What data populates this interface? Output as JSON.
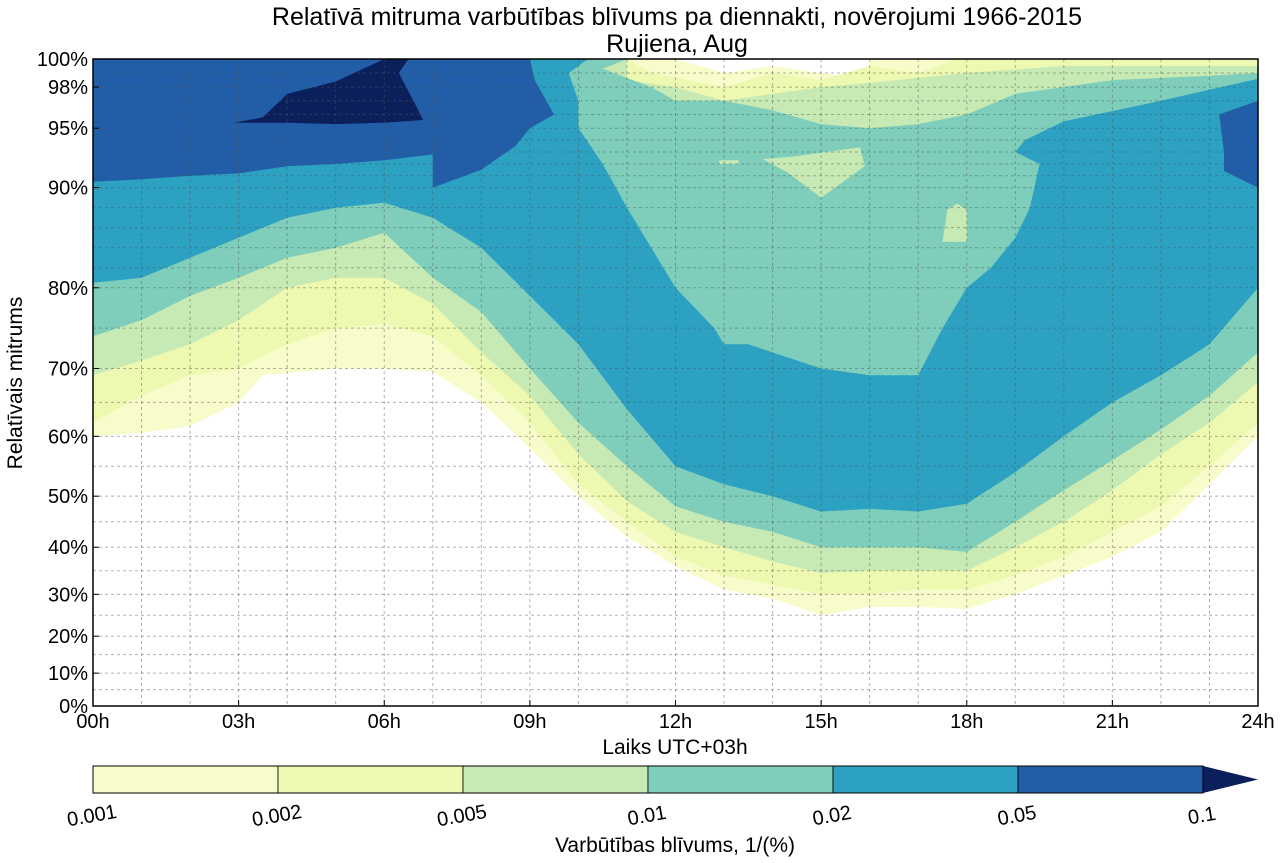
{
  "chart_data": {
    "type": "contourf",
    "title": "Relatīvā mitruma varbūtības blīvums pa diennakti, novērojumi 1966-2015",
    "subtitle": "Rujiena, Aug",
    "xlabel": "Laiks UTC+03h",
    "ylabel": "Relatīvais mitrums",
    "xlim": [
      0,
      24
    ],
    "ylim": [
      0,
      100
    ],
    "x_ticks": [
      {
        "value": 0,
        "label": "00h"
      },
      {
        "value": 3,
        "label": "03h"
      },
      {
        "value": 6,
        "label": "06h"
      },
      {
        "value": 9,
        "label": "09h"
      },
      {
        "value": 12,
        "label": "12h"
      },
      {
        "value": 15,
        "label": "15h"
      },
      {
        "value": 18,
        "label": "18h"
      },
      {
        "value": 21,
        "label": "21h"
      },
      {
        "value": 24,
        "label": "24h"
      }
    ],
    "y_ticks": [
      {
        "value": 0,
        "label": "0%"
      },
      {
        "value": 10,
        "label": "10%"
      },
      {
        "value": 20,
        "label": "20%"
      },
      {
        "value": 30,
        "label": "30%"
      },
      {
        "value": 40,
        "label": "40%"
      },
      {
        "value": 50,
        "label": "50%"
      },
      {
        "value": 60,
        "label": "60%"
      },
      {
        "value": 70,
        "label": "70%"
      },
      {
        "value": 80,
        "label": "80%"
      },
      {
        "value": 90,
        "label": "90%"
      },
      {
        "value": 95,
        "label": "95%"
      },
      {
        "value": 98,
        "label": "98%"
      },
      {
        "value": 100,
        "label": "100%"
      }
    ],
    "y_scale_map": [
      [
        0,
        0
      ],
      [
        10,
        0.0508
      ],
      [
        20,
        0.1079
      ],
      [
        30,
        0.1726
      ],
      [
        40,
        0.2454
      ],
      [
        50,
        0.3243
      ],
      [
        60,
        0.4168
      ],
      [
        70,
        0.5216
      ],
      [
        80,
        0.6464
      ],
      [
        90,
        0.8012
      ],
      [
        95,
        0.893
      ],
      [
        98,
        0.9566
      ],
      [
        100,
        1.0
      ]
    ],
    "grid": true,
    "levels": [
      0.001,
      0.002,
      0.005,
      0.01,
      0.02,
      0.05,
      0.1
    ],
    "level_colors": [
      "#f8fccb",
      "#edf8b1",
      "#c7e9b4",
      "#7fcdbb",
      "#2ca1c1",
      "#225ea8",
      "#0b1f5a"
    ],
    "colorbar": {
      "label": "Varbūtības blīvums, 1/(%)",
      "tick_labels": [
        "0.001",
        "0.002",
        "0.005",
        "0.01",
        "0.02",
        "0.05",
        "0.1"
      ],
      "extend": "max"
    },
    "regions": [
      {
        "level": 0,
        "points": [
          [
            0,
            60
          ],
          [
            1,
            60.5
          ],
          [
            2,
            61.5
          ],
          [
            3,
            65
          ],
          [
            3.5,
            69
          ],
          [
            5,
            70
          ],
          [
            6,
            70
          ],
          [
            7,
            69.5
          ],
          [
            8,
            65
          ],
          [
            9,
            58
          ],
          [
            10,
            50
          ],
          [
            11,
            42
          ],
          [
            12,
            36
          ],
          [
            13,
            31
          ],
          [
            14,
            29
          ],
          [
            15,
            25
          ],
          [
            16,
            27
          ],
          [
            17,
            27
          ],
          [
            18,
            26.5
          ],
          [
            19,
            30
          ],
          [
            20,
            34
          ],
          [
            21,
            38
          ],
          [
            22,
            43
          ],
          [
            23,
            52
          ],
          [
            24,
            60
          ],
          [
            24,
            100
          ],
          [
            16,
            100
          ],
          [
            16,
            98.5
          ],
          [
            15,
            99
          ],
          [
            14,
            99.5
          ],
          [
            13,
            99
          ],
          [
            12,
            100
          ],
          [
            0,
            100
          ]
        ]
      },
      {
        "level": 1,
        "points": [
          [
            0,
            62
          ],
          [
            1,
            66
          ],
          [
            2,
            69
          ],
          [
            3,
            70
          ],
          [
            4,
            73
          ],
          [
            5,
            75
          ],
          [
            6,
            75.5
          ],
          [
            7,
            74
          ],
          [
            8,
            69
          ],
          [
            9,
            62
          ],
          [
            10,
            52
          ],
          [
            11,
            45
          ],
          [
            12,
            38
          ],
          [
            13,
            34
          ],
          [
            14,
            32
          ],
          [
            15,
            30
          ],
          [
            16,
            30
          ],
          [
            17,
            31
          ],
          [
            18,
            31
          ],
          [
            19,
            34
          ],
          [
            20,
            38
          ],
          [
            21,
            43
          ],
          [
            22,
            48
          ],
          [
            23,
            55
          ],
          [
            24,
            62
          ],
          [
            24,
            100
          ],
          [
            17.8,
            100
          ],
          [
            17,
            99
          ],
          [
            16,
            99.5
          ],
          [
            15,
            98.5
          ],
          [
            14,
            99
          ],
          [
            13,
            98
          ],
          [
            11.5,
            99
          ],
          [
            11,
            100
          ],
          [
            0,
            100
          ]
        ]
      },
      {
        "level": 2,
        "points": [
          [
            0,
            69
          ],
          [
            1,
            71
          ],
          [
            2,
            73
          ],
          [
            3,
            76
          ],
          [
            3.5,
            78
          ],
          [
            4,
            80
          ],
          [
            5,
            81
          ],
          [
            6,
            81
          ],
          [
            7,
            78
          ],
          [
            8,
            72
          ],
          [
            9,
            66
          ],
          [
            10,
            57
          ],
          [
            11,
            49
          ],
          [
            12,
            43
          ],
          [
            13,
            40
          ],
          [
            14,
            37
          ],
          [
            15,
            34.5
          ],
          [
            16,
            35
          ],
          [
            17,
            35
          ],
          [
            18,
            35
          ],
          [
            19,
            40
          ],
          [
            20,
            45
          ],
          [
            21,
            51
          ],
          [
            22,
            57
          ],
          [
            23,
            62
          ],
          [
            24,
            68
          ],
          [
            24,
            99.5
          ],
          [
            20,
            99.5
          ],
          [
            18,
            99
          ],
          [
            16,
            98.3
          ],
          [
            15,
            98
          ],
          [
            14,
            97.5
          ],
          [
            13,
            97
          ],
          [
            12,
            98
          ],
          [
            11,
            98.5
          ],
          [
            11,
            100
          ],
          [
            0,
            100
          ]
        ]
      },
      {
        "level": 3,
        "points": [
          [
            0,
            74
          ],
          [
            1,
            76
          ],
          [
            2,
            79
          ],
          [
            3,
            81
          ],
          [
            4,
            83
          ],
          [
            5,
            84
          ],
          [
            6,
            85.5
          ],
          [
            7,
            81
          ],
          [
            8,
            77
          ],
          [
            9,
            70
          ],
          [
            10,
            62
          ],
          [
            11,
            55
          ],
          [
            12,
            48
          ],
          [
            13,
            45
          ],
          [
            14,
            43
          ],
          [
            15,
            40
          ],
          [
            16,
            40
          ],
          [
            17,
            40
          ],
          [
            18,
            39
          ],
          [
            19,
            45
          ],
          [
            20,
            51
          ],
          [
            21,
            56
          ],
          [
            22,
            61
          ],
          [
            23,
            66
          ],
          [
            24,
            72
          ],
          [
            24,
            99
          ],
          [
            23,
            98.8
          ],
          [
            21,
            98.5
          ],
          [
            19,
            97.5
          ],
          [
            18,
            96
          ],
          [
            17,
            95.3
          ],
          [
            16,
            95
          ],
          [
            15,
            95.3
          ],
          [
            14,
            96.3
          ],
          [
            13,
            97
          ],
          [
            12,
            97
          ],
          [
            11.5,
            98
          ],
          [
            10.5,
            99.3
          ],
          [
            11,
            100
          ],
          [
            0,
            100
          ]
        ]
      },
      {
        "level": 4,
        "points": [
          [
            0,
            80.5
          ],
          [
            1,
            81
          ],
          [
            2,
            83
          ],
          [
            3,
            85
          ],
          [
            4,
            87
          ],
          [
            5,
            88
          ],
          [
            6,
            88.5
          ],
          [
            7,
            87
          ],
          [
            8,
            84
          ],
          [
            9,
            79
          ],
          [
            10,
            73
          ],
          [
            11,
            64
          ],
          [
            12,
            55
          ],
          [
            13,
            52
          ],
          [
            14,
            50
          ],
          [
            15,
            47
          ],
          [
            16,
            47.5
          ],
          [
            17,
            47
          ],
          [
            18,
            48.5
          ],
          [
            19,
            54
          ],
          [
            20,
            60
          ],
          [
            21,
            65
          ],
          [
            22,
            69
          ],
          [
            23,
            73
          ],
          [
            24,
            80
          ],
          [
            24,
            98.6
          ],
          [
            22,
            97
          ],
          [
            20,
            95.5
          ],
          [
            19.2,
            94
          ],
          [
            19,
            93
          ],
          [
            19.5,
            92
          ],
          [
            19.3,
            88
          ],
          [
            19,
            85
          ],
          [
            18.5,
            82
          ],
          [
            18,
            80
          ],
          [
            17.5,
            75
          ],
          [
            17,
            69
          ],
          [
            16,
            69
          ],
          [
            15,
            70
          ],
          [
            13.5,
            73
          ],
          [
            13,
            73
          ],
          [
            12.8,
            75
          ],
          [
            12,
            80
          ],
          [
            11.5,
            84
          ],
          [
            11,
            88
          ],
          [
            10.5,
            92
          ],
          [
            10,
            95
          ],
          [
            10,
            97
          ],
          [
            9.8,
            99
          ],
          [
            10.2,
            100
          ],
          [
            0,
            100
          ]
        ]
      },
      {
        "level": 5,
        "points": [
          [
            0,
            90.5
          ],
          [
            1,
            90.7
          ],
          [
            2,
            91
          ],
          [
            3,
            91.2
          ],
          [
            4,
            91.8
          ],
          [
            5,
            92
          ],
          [
            6,
            92.3
          ],
          [
            7,
            92.8
          ],
          [
            7,
            90
          ],
          [
            8,
            91.5
          ],
          [
            8.7,
            93.5
          ],
          [
            9,
            95
          ],
          [
            9.5,
            96
          ],
          [
            9.1,
            98.5
          ],
          [
            9,
            100
          ],
          [
            0,
            100
          ]
        ]
      },
      {
        "level": 5,
        "points": [
          [
            23.3,
            91.4
          ],
          [
            24,
            90
          ],
          [
            24,
            97
          ],
          [
            23.2,
            96
          ],
          [
            23.3,
            93
          ]
        ]
      },
      {
        "level": 6,
        "points": [
          [
            2.9,
            95.4
          ],
          [
            3.5,
            95.8
          ],
          [
            4,
            97.5
          ],
          [
            5,
            98.4
          ],
          [
            6,
            100
          ],
          [
            6.5,
            100
          ],
          [
            6.3,
            99
          ],
          [
            6.6,
            97
          ],
          [
            6.8,
            95.6
          ],
          [
            6,
            95.4
          ],
          [
            5,
            95.3
          ],
          [
            4,
            95.4
          ]
        ]
      },
      {
        "level": 3,
        "points": [
          [
            0,
            97.5
          ],
          [
            1.5,
            99
          ],
          [
            2.2,
            100
          ],
          [
            0,
            100
          ]
        ]
      },
      {
        "level": 4,
        "points": [
          [
            0,
            96.8
          ],
          [
            1,
            97.2
          ],
          [
            2,
            98
          ],
          [
            2.5,
            99
          ],
          [
            3,
            100
          ],
          [
            0,
            100
          ]
        ]
      },
      {
        "level": 5,
        "points": [
          [
            0,
            96.5
          ],
          [
            1,
            96.8
          ],
          [
            2,
            97.6
          ],
          [
            3,
            99
          ],
          [
            3,
            100
          ],
          [
            0,
            100
          ]
        ]
      },
      {
        "level": 2,
        "points": [
          [
            13.8,
            92.4
          ],
          [
            14.3,
            91.3
          ],
          [
            15,
            89
          ],
          [
            15.9,
            91.8
          ],
          [
            15.8,
            93.4
          ],
          [
            14.4,
            92.6
          ]
        ]
      },
      {
        "level": 2,
        "points": [
          [
            17.5,
            84.6
          ],
          [
            17.6,
            87.8
          ],
          [
            17.8,
            88.4
          ],
          [
            18,
            87.8
          ],
          [
            18,
            84.6
          ]
        ]
      },
      {
        "level": 2,
        "points": [
          [
            12.9,
            92.3
          ],
          [
            13.3,
            92.3
          ],
          [
            13.3,
            92.0
          ],
          [
            12.9,
            92.0
          ]
        ]
      }
    ]
  }
}
